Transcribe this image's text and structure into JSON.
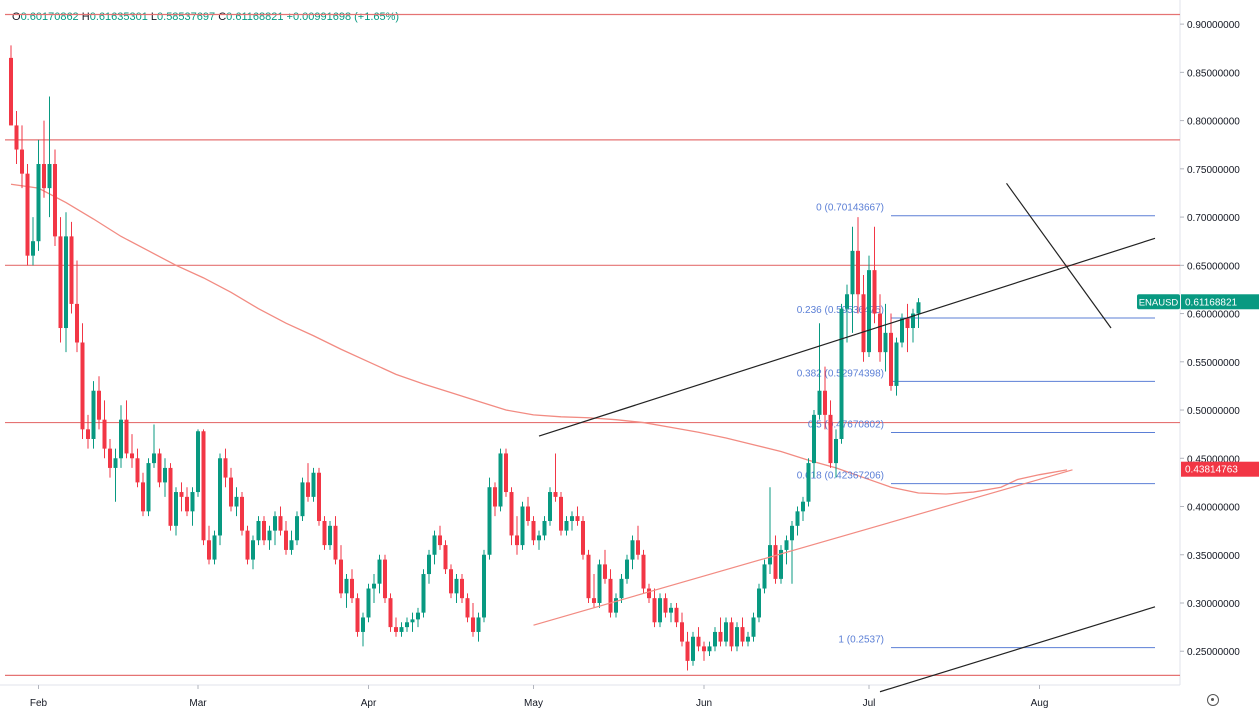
{
  "header": {
    "open_key": "O",
    "open": "0.60170862",
    "high_key": "H",
    "high": "0.61635301",
    "low_key": "L",
    "low": "0.58537697",
    "close_key": "C",
    "close": "0.61168821",
    "change": "+0.00991698 (+1.65%)"
  },
  "colors": {
    "up": "#089981",
    "down": "#f23645",
    "ma": "#f28b82",
    "hline": "#e57373",
    "fib": "#5b7fd6",
    "trend": "#222222"
  },
  "chart_data": {
    "type": "candlestick",
    "symbol": "ENAUSD",
    "last_price": "0.61168821",
    "ma_value": "0.43814763",
    "ylim": [
      0.215,
      0.925
    ],
    "y_ticks": [
      {
        "v": 0.9,
        "label": "0.90000000"
      },
      {
        "v": 0.85,
        "label": "0.85000000"
      },
      {
        "v": 0.8,
        "label": "0.80000000"
      },
      {
        "v": 0.75,
        "label": "0.75000000"
      },
      {
        "v": 0.7,
        "label": "0.70000000"
      },
      {
        "v": 0.65,
        "label": "0.65000000"
      },
      {
        "v": 0.6,
        "label": "0.60000000"
      },
      {
        "v": 0.55,
        "label": "0.55000000"
      },
      {
        "v": 0.5,
        "label": "0.50000000"
      },
      {
        "v": 0.45,
        "label": "0.45000000"
      },
      {
        "v": 0.4,
        "label": "0.40000000"
      },
      {
        "v": 0.35,
        "label": "0.35000000"
      },
      {
        "v": 0.3,
        "label": "0.30000000"
      },
      {
        "v": 0.25,
        "label": "0.25000000"
      }
    ],
    "x_ticks": [
      {
        "day": 5,
        "label": "Feb"
      },
      {
        "day": 34,
        "label": "Mar"
      },
      {
        "day": 65,
        "label": "Apr"
      },
      {
        "day": 95,
        "label": "May"
      },
      {
        "day": 126,
        "label": "Jun"
      },
      {
        "day": 156,
        "label": "Jul"
      },
      {
        "day": 187,
        "label": "Aug"
      }
    ],
    "horizontal_lines": [
      0.91,
      0.78,
      0.65,
      0.487,
      0.225
    ],
    "fibonacci": {
      "start_day": 160,
      "end_day": 208,
      "levels": [
        {
          "ratio": "0",
          "price": 0.70143667,
          "label": "0 (0.70143667)"
        },
        {
          "ratio": "0.236",
          "price": 0.59536475,
          "label": "0.236 (0.59536475)"
        },
        {
          "ratio": "0.382",
          "price": 0.52974398,
          "label": "0.382 (0.52974398)"
        },
        {
          "ratio": "0.5",
          "price": 0.47670802,
          "label": "0.5 (0.47670802)"
        },
        {
          "ratio": "0.618",
          "price": 0.42367206,
          "label": "0.618 (0.42367206)"
        },
        {
          "ratio": "1",
          "price": 0.2537,
          "label": "1 (0.2537)"
        }
      ]
    },
    "trendlines": [
      {
        "from": [
          96,
          0.473
        ],
        "to": [
          208,
          0.678
        ],
        "color": "trend"
      },
      {
        "from": [
          181,
          0.735
        ],
        "to": [
          200,
          0.585
        ],
        "color": "trend"
      },
      {
        "from": [
          158,
          0.208
        ],
        "to": [
          208,
          0.296
        ],
        "color": "trend"
      },
      {
        "from": [
          95,
          0.277
        ],
        "to": [
          193,
          0.438
        ],
        "color": "ma"
      }
    ],
    "ma_200": [
      [
        0,
        0.734
      ],
      [
        5,
        0.73
      ],
      [
        10,
        0.715
      ],
      [
        15,
        0.698
      ],
      [
        20,
        0.68
      ],
      [
        25,
        0.665
      ],
      [
        30,
        0.65
      ],
      [
        35,
        0.637
      ],
      [
        40,
        0.622
      ],
      [
        45,
        0.605
      ],
      [
        50,
        0.59
      ],
      [
        55,
        0.577
      ],
      [
        60,
        0.563
      ],
      [
        65,
        0.55
      ],
      [
        70,
        0.537
      ],
      [
        75,
        0.527
      ],
      [
        80,
        0.518
      ],
      [
        85,
        0.509
      ],
      [
        90,
        0.5
      ],
      [
        95,
        0.495
      ],
      [
        100,
        0.493
      ],
      [
        105,
        0.492
      ],
      [
        110,
        0.49
      ],
      [
        115,
        0.487
      ],
      [
        120,
        0.482
      ],
      [
        125,
        0.477
      ],
      [
        130,
        0.471
      ],
      [
        135,
        0.464
      ],
      [
        140,
        0.457
      ],
      [
        145,
        0.448
      ],
      [
        150,
        0.44
      ],
      [
        155,
        0.43
      ],
      [
        160,
        0.42
      ],
      [
        165,
        0.414
      ],
      [
        170,
        0.413
      ],
      [
        175,
        0.415
      ],
      [
        180,
        0.42
      ],
      [
        183,
        0.428
      ],
      [
        187,
        0.433
      ],
      [
        192,
        0.438
      ]
    ],
    "candles": [
      [
        0.865,
        0.878,
        0.795,
        0.795
      ],
      [
        0.795,
        0.81,
        0.755,
        0.77
      ],
      [
        0.77,
        0.795,
        0.73,
        0.745
      ],
      [
        0.745,
        0.755,
        0.65,
        0.66
      ],
      [
        0.66,
        0.7,
        0.65,
        0.675
      ],
      [
        0.675,
        0.78,
        0.665,
        0.755
      ],
      [
        0.755,
        0.8,
        0.72,
        0.73
      ],
      [
        0.73,
        0.825,
        0.7,
        0.755
      ],
      [
        0.755,
        0.77,
        0.67,
        0.68
      ],
      [
        0.68,
        0.7,
        0.57,
        0.585
      ],
      [
        0.585,
        0.705,
        0.56,
        0.68
      ],
      [
        0.68,
        0.695,
        0.6,
        0.61
      ],
      [
        0.61,
        0.655,
        0.56,
        0.57
      ],
      [
        0.57,
        0.59,
        0.47,
        0.48
      ],
      [
        0.48,
        0.495,
        0.46,
        0.47
      ],
      [
        0.47,
        0.53,
        0.46,
        0.52
      ],
      [
        0.52,
        0.535,
        0.48,
        0.49
      ],
      [
        0.49,
        0.51,
        0.45,
        0.46
      ],
      [
        0.46,
        0.47,
        0.43,
        0.44
      ],
      [
        0.44,
        0.46,
        0.405,
        0.45
      ],
      [
        0.45,
        0.505,
        0.44,
        0.49
      ],
      [
        0.49,
        0.51,
        0.45,
        0.455
      ],
      [
        0.455,
        0.475,
        0.44,
        0.45
      ],
      [
        0.45,
        0.46,
        0.42,
        0.425
      ],
      [
        0.425,
        0.435,
        0.39,
        0.395
      ],
      [
        0.395,
        0.45,
        0.39,
        0.445
      ],
      [
        0.445,
        0.485,
        0.44,
        0.455
      ],
      [
        0.455,
        0.46,
        0.42,
        0.425
      ],
      [
        0.425,
        0.45,
        0.41,
        0.44
      ],
      [
        0.44,
        0.445,
        0.375,
        0.38
      ],
      [
        0.38,
        0.42,
        0.37,
        0.415
      ],
      [
        0.415,
        0.425,
        0.395,
        0.41
      ],
      [
        0.41,
        0.42,
        0.39,
        0.395
      ],
      [
        0.395,
        0.42,
        0.38,
        0.415
      ],
      [
        0.415,
        0.48,
        0.41,
        0.478
      ],
      [
        0.478,
        0.48,
        0.36,
        0.365
      ],
      [
        0.365,
        0.38,
        0.34,
        0.345
      ],
      [
        0.345,
        0.375,
        0.34,
        0.37
      ],
      [
        0.37,
        0.455,
        0.36,
        0.45
      ],
      [
        0.45,
        0.46,
        0.42,
        0.43
      ],
      [
        0.43,
        0.44,
        0.395,
        0.4
      ],
      [
        0.4,
        0.42,
        0.39,
        0.41
      ],
      [
        0.41,
        0.415,
        0.37,
        0.375
      ],
      [
        0.375,
        0.38,
        0.34,
        0.345
      ],
      [
        0.345,
        0.37,
        0.335,
        0.365
      ],
      [
        0.365,
        0.39,
        0.36,
        0.385
      ],
      [
        0.385,
        0.39,
        0.36,
        0.365
      ],
      [
        0.365,
        0.38,
        0.355,
        0.375
      ],
      [
        0.375,
        0.395,
        0.36,
        0.39
      ],
      [
        0.39,
        0.4,
        0.37,
        0.375
      ],
      [
        0.375,
        0.385,
        0.35,
        0.355
      ],
      [
        0.355,
        0.375,
        0.35,
        0.365
      ],
      [
        0.365,
        0.395,
        0.36,
        0.39
      ],
      [
        0.39,
        0.43,
        0.385,
        0.425
      ],
      [
        0.425,
        0.445,
        0.405,
        0.41
      ],
      [
        0.41,
        0.44,
        0.405,
        0.435
      ],
      [
        0.435,
        0.44,
        0.38,
        0.385
      ],
      [
        0.385,
        0.39,
        0.355,
        0.36
      ],
      [
        0.36,
        0.385,
        0.355,
        0.38
      ],
      [
        0.38,
        0.39,
        0.34,
        0.345
      ],
      [
        0.345,
        0.36,
        0.305,
        0.31
      ],
      [
        0.31,
        0.33,
        0.295,
        0.325
      ],
      [
        0.325,
        0.335,
        0.3,
        0.305
      ],
      [
        0.305,
        0.31,
        0.265,
        0.27
      ],
      [
        0.27,
        0.29,
        0.255,
        0.285
      ],
      [
        0.285,
        0.32,
        0.28,
        0.315
      ],
      [
        0.315,
        0.33,
        0.3,
        0.32
      ],
      [
        0.32,
        0.35,
        0.31,
        0.345
      ],
      [
        0.345,
        0.35,
        0.3,
        0.305
      ],
      [
        0.305,
        0.31,
        0.27,
        0.275
      ],
      [
        0.275,
        0.285,
        0.265,
        0.27
      ],
      [
        0.27,
        0.28,
        0.265,
        0.275
      ],
      [
        0.275,
        0.285,
        0.27,
        0.28
      ],
      [
        0.28,
        0.29,
        0.27,
        0.283
      ],
      [
        0.283,
        0.295,
        0.275,
        0.29
      ],
      [
        0.29,
        0.335,
        0.285,
        0.33
      ],
      [
        0.33,
        0.355,
        0.32,
        0.35
      ],
      [
        0.35,
        0.375,
        0.34,
        0.37
      ],
      [
        0.37,
        0.38,
        0.355,
        0.36
      ],
      [
        0.36,
        0.365,
        0.33,
        0.335
      ],
      [
        0.335,
        0.34,
        0.305,
        0.31
      ],
      [
        0.31,
        0.33,
        0.3,
        0.325
      ],
      [
        0.325,
        0.33,
        0.3,
        0.305
      ],
      [
        0.305,
        0.31,
        0.28,
        0.285
      ],
      [
        0.285,
        0.3,
        0.265,
        0.27
      ],
      [
        0.27,
        0.29,
        0.26,
        0.285
      ],
      [
        0.285,
        0.355,
        0.28,
        0.35
      ],
      [
        0.35,
        0.43,
        0.345,
        0.42
      ],
      [
        0.42,
        0.425,
        0.39,
        0.4
      ],
      [
        0.4,
        0.46,
        0.395,
        0.455
      ],
      [
        0.455,
        0.46,
        0.41,
        0.415
      ],
      [
        0.415,
        0.42,
        0.36,
        0.37
      ],
      [
        0.37,
        0.39,
        0.35,
        0.36
      ],
      [
        0.36,
        0.405,
        0.355,
        0.4
      ],
      [
        0.4,
        0.41,
        0.38,
        0.385
      ],
      [
        0.385,
        0.39,
        0.36,
        0.365
      ],
      [
        0.365,
        0.375,
        0.355,
        0.37
      ],
      [
        0.37,
        0.39,
        0.365,
        0.385
      ],
      [
        0.385,
        0.42,
        0.38,
        0.415
      ],
      [
        0.415,
        0.455,
        0.405,
        0.41
      ],
      [
        0.41,
        0.415,
        0.37,
        0.375
      ],
      [
        0.375,
        0.39,
        0.37,
        0.385
      ],
      [
        0.385,
        0.395,
        0.375,
        0.39
      ],
      [
        0.39,
        0.4,
        0.38,
        0.385
      ],
      [
        0.385,
        0.39,
        0.345,
        0.35
      ],
      [
        0.35,
        0.355,
        0.3,
        0.305
      ],
      [
        0.305,
        0.33,
        0.295,
        0.3
      ],
      [
        0.3,
        0.345,
        0.295,
        0.34
      ],
      [
        0.34,
        0.355,
        0.32,
        0.325
      ],
      [
        0.325,
        0.335,
        0.285,
        0.29
      ],
      [
        0.29,
        0.31,
        0.285,
        0.305
      ],
      [
        0.305,
        0.33,
        0.3,
        0.325
      ],
      [
        0.325,
        0.35,
        0.32,
        0.345
      ],
      [
        0.345,
        0.37,
        0.335,
        0.365
      ],
      [
        0.365,
        0.38,
        0.345,
        0.35
      ],
      [
        0.35,
        0.355,
        0.31,
        0.315
      ],
      [
        0.315,
        0.32,
        0.3,
        0.305
      ],
      [
        0.305,
        0.315,
        0.275,
        0.28
      ],
      [
        0.28,
        0.31,
        0.275,
        0.305
      ],
      [
        0.305,
        0.31,
        0.285,
        0.29
      ],
      [
        0.29,
        0.3,
        0.28,
        0.295
      ],
      [
        0.295,
        0.3,
        0.275,
        0.28
      ],
      [
        0.28,
        0.29,
        0.255,
        0.26
      ],
      [
        0.26,
        0.27,
        0.23,
        0.24
      ],
      [
        0.24,
        0.27,
        0.235,
        0.265
      ],
      [
        0.265,
        0.275,
        0.25,
        0.255
      ],
      [
        0.255,
        0.26,
        0.24,
        0.25
      ],
      [
        0.25,
        0.26,
        0.245,
        0.255
      ],
      [
        0.255,
        0.275,
        0.25,
        0.27
      ],
      [
        0.27,
        0.285,
        0.255,
        0.26
      ],
      [
        0.26,
        0.285,
        0.255,
        0.28
      ],
      [
        0.28,
        0.285,
        0.25,
        0.255
      ],
      [
        0.255,
        0.28,
        0.25,
        0.275
      ],
      [
        0.275,
        0.285,
        0.255,
        0.26
      ],
      [
        0.26,
        0.27,
        0.255,
        0.265
      ],
      [
        0.265,
        0.29,
        0.26,
        0.285
      ],
      [
        0.285,
        0.32,
        0.28,
        0.315
      ],
      [
        0.315,
        0.345,
        0.31,
        0.34
      ],
      [
        0.34,
        0.42,
        0.33,
        0.36
      ],
      [
        0.36,
        0.37,
        0.32,
        0.325
      ],
      [
        0.325,
        0.36,
        0.32,
        0.355
      ],
      [
        0.355,
        0.37,
        0.34,
        0.365
      ],
      [
        0.365,
        0.385,
        0.32,
        0.38
      ],
      [
        0.38,
        0.4,
        0.37,
        0.395
      ],
      [
        0.395,
        0.41,
        0.385,
        0.405
      ],
      [
        0.405,
        0.45,
        0.4,
        0.445
      ],
      [
        0.445,
        0.5,
        0.43,
        0.495
      ],
      [
        0.495,
        0.59,
        0.49,
        0.52
      ],
      [
        0.52,
        0.545,
        0.48,
        0.495
      ],
      [
        0.495,
        0.51,
        0.44,
        0.445
      ],
      [
        0.445,
        0.48,
        0.43,
        0.47
      ],
      [
        0.47,
        0.61,
        0.465,
        0.605
      ],
      [
        0.605,
        0.63,
        0.57,
        0.62
      ],
      [
        0.62,
        0.69,
        0.58,
        0.665
      ],
      [
        0.665,
        0.7,
        0.6,
        0.62
      ],
      [
        0.62,
        0.64,
        0.55,
        0.56
      ],
      [
        0.56,
        0.66,
        0.555,
        0.645
      ],
      [
        0.645,
        0.69,
        0.59,
        0.6
      ],
      [
        0.6,
        0.62,
        0.55,
        0.56
      ],
      [
        0.56,
        0.61,
        0.54,
        0.58
      ],
      [
        0.58,
        0.6,
        0.52,
        0.525
      ],
      [
        0.525,
        0.575,
        0.515,
        0.57
      ],
      [
        0.57,
        0.6,
        0.565,
        0.595
      ],
      [
        0.595,
        0.61,
        0.56,
        0.585
      ],
      [
        0.585,
        0.605,
        0.57,
        0.6
      ],
      [
        0.6,
        0.616,
        0.585,
        0.6117
      ]
    ]
  }
}
